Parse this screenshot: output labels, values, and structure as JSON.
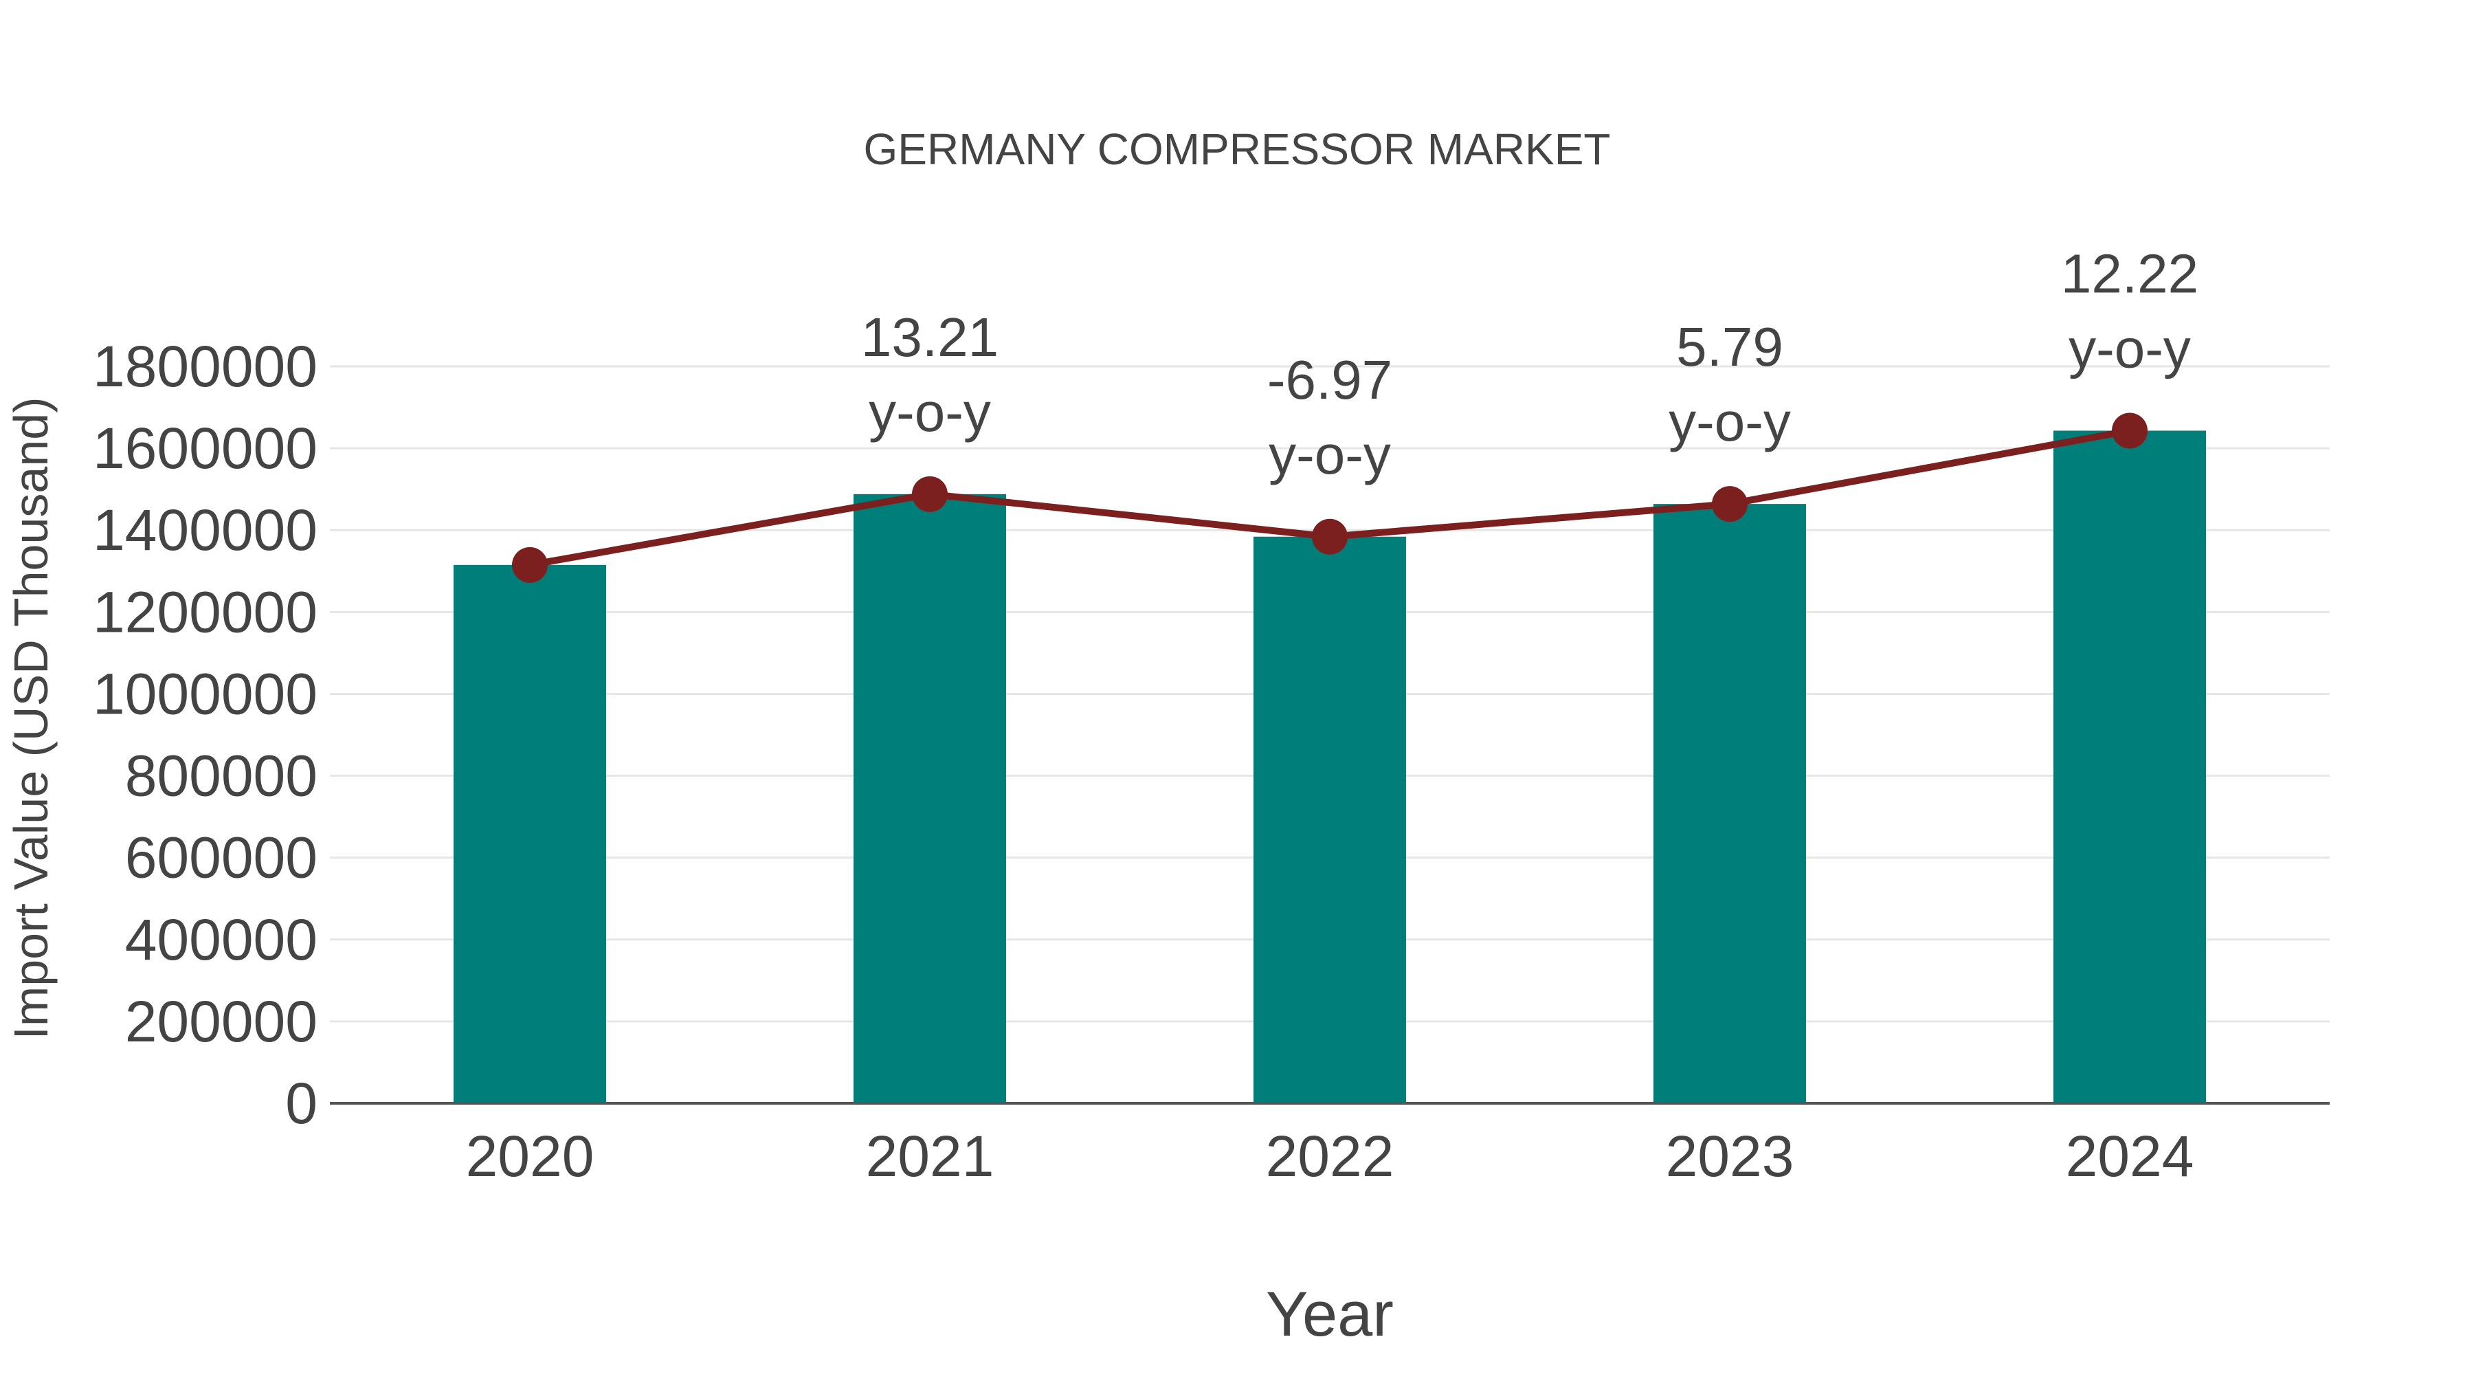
{
  "chart_data": {
    "type": "bar",
    "title": "GERMANY COMPRESSOR MARKET",
    "xlabel": "Year",
    "ylabel": "Import Value (USD Thousand)",
    "categories": [
      "2020",
      "2021",
      "2022",
      "2023",
      "2024"
    ],
    "series": [
      {
        "name": "Import Value",
        "type": "bar",
        "color": "#007f7a",
        "values": [
          1315000,
          1488000,
          1384000,
          1464000,
          1643000
        ]
      },
      {
        "name": "Import Value (trend)",
        "type": "line",
        "color": "#7b1f1f",
        "values": [
          1315000,
          1488000,
          1384000,
          1464000,
          1643000
        ]
      }
    ],
    "annotations": [
      {
        "category": "2021",
        "value": "13.21",
        "suffix": "y-o-y"
      },
      {
        "category": "2022",
        "value": "-6.97",
        "suffix": "y-o-y"
      },
      {
        "category": "2023",
        "value": "5.79",
        "suffix": "y-o-y"
      },
      {
        "category": "2024",
        "value": "12.22",
        "suffix": "y-o-y"
      }
    ],
    "yticks": [
      0,
      200000,
      400000,
      600000,
      800000,
      1000000,
      1200000,
      1400000,
      1600000,
      1800000
    ],
    "ylim": [
      0,
      1800000
    ],
    "grid": true,
    "legend": "none"
  },
  "colors": {
    "bar": "#007f7a",
    "line": "#7b1f1f",
    "text": "#444444",
    "grid": "#e6e6e6",
    "axis": "#555555"
  }
}
